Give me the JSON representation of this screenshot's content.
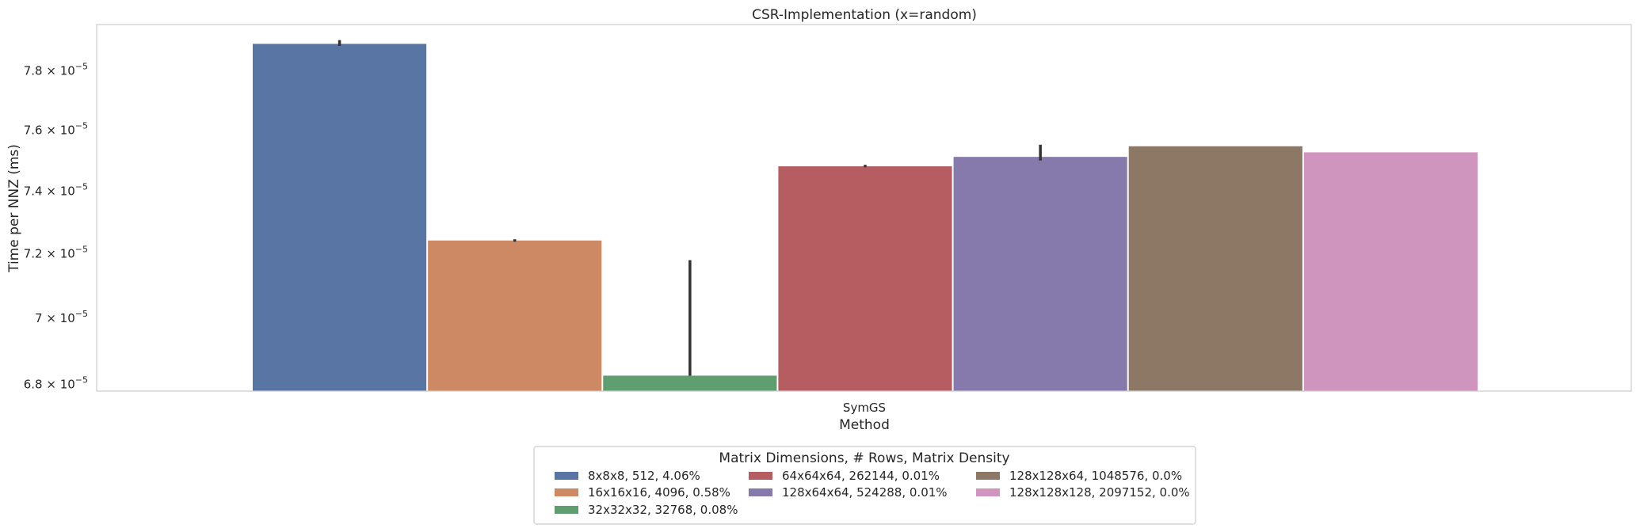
{
  "chart_data": {
    "type": "bar",
    "title": "CSR-Implementation (x=random)",
    "xlabel": "Method",
    "ylabel": "Time per NNZ (ms)",
    "categories": [
      "SymGS"
    ],
    "y_scale": "log",
    "ylim": [
      6.78e-05,
      7.96e-05
    ],
    "yticks": [
      {
        "value": 6.8e-05,
        "mantissa": "6.8",
        "exp": "−5"
      },
      {
        "value": 7e-05,
        "mantissa": "7",
        "exp": "−5"
      },
      {
        "value": 7.2e-05,
        "mantissa": "7.2",
        "exp": "−5"
      },
      {
        "value": 7.4e-05,
        "mantissa": "7.4",
        "exp": "−5"
      },
      {
        "value": 7.6e-05,
        "mantissa": "7.6",
        "exp": "−5"
      },
      {
        "value": 7.8e-05,
        "mantissa": "7.8",
        "exp": "−5"
      }
    ],
    "grid": false,
    "legend_title": "Matrix Dimensions, # Rows, Matrix Density",
    "legend_position": "bottom-center",
    "series": [
      {
        "name": "8x8x8, 512, 4.06%",
        "color": "#5975a4",
        "values": [
          7.893e-05
        ],
        "err": [
          7.886e-05,
          7.906e-05
        ]
      },
      {
        "name": "16x16x16, 4096, 0.58%",
        "color": "#cc8963",
        "values": [
          7.242e-05
        ],
        "err": [
          7.238e-05,
          7.246e-05
        ]
      },
      {
        "name": "32x32x32, 32768, 0.08%",
        "color": "#5f9e6e",
        "values": [
          6.826e-05
        ],
        "err": [
          6.826e-05,
          7.18e-05
        ]
      },
      {
        "name": "64x64x64, 262144, 0.01%",
        "color": "#b55d60",
        "values": [
          7.481e-05
        ],
        "err": [
          7.478e-05,
          7.486e-05
        ]
      },
      {
        "name": "128x64x64, 524288, 0.01%",
        "color": "#857aab",
        "values": [
          7.512e-05
        ],
        "err": [
          7.5e-05,
          7.552e-05
        ]
      },
      {
        "name": "128x128x64, 1048576, 0.0%",
        "color": "#8d7866",
        "values": [
          7.547e-05
        ]
      },
      {
        "name": "128x128x128, 2097152, 0.0%",
        "color": "#d095bf",
        "values": [
          7.527e-05
        ]
      }
    ]
  }
}
